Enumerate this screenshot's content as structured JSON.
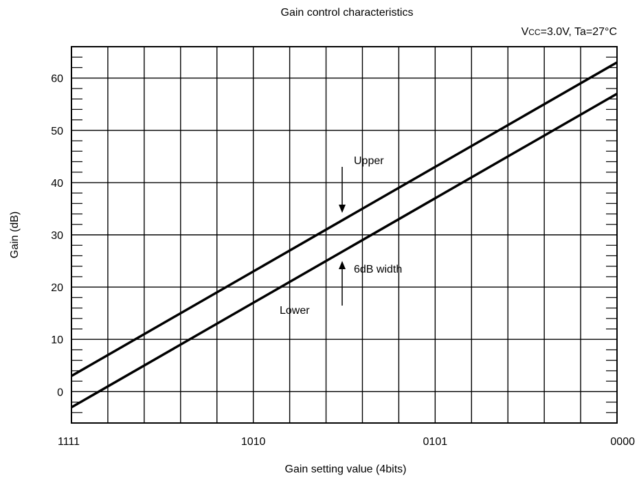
{
  "chart_data": {
    "type": "line",
    "title": "Gain control characteristics",
    "subtitle": "VCC=3.0V, Ta=27°C",
    "xlabel": "Gain setting value (4bits)",
    "ylabel": "Gain (dB)",
    "xlim": [
      15,
      0
    ],
    "ylim": [
      -6,
      66
    ],
    "x_tick_labels": [
      {
        "x": 15,
        "label": "1111"
      },
      {
        "x": 10,
        "label": "1010"
      },
      {
        "x": 5,
        "label": "0101"
      },
      {
        "x": 0,
        "label": "0000"
      }
    ],
    "y_ticks": [
      0,
      10,
      20,
      30,
      40,
      50,
      60
    ],
    "grid": true,
    "series": [
      {
        "name": "Upper",
        "x": [
          15,
          0
        ],
        "values": [
          3,
          63
        ]
      },
      {
        "name": "Lower",
        "x": [
          15,
          0
        ],
        "values": [
          -3,
          57
        ]
      }
    ],
    "annotations": [
      {
        "text": "Upper"
      },
      {
        "text": "Lower"
      },
      {
        "text": "6dB width"
      }
    ]
  }
}
